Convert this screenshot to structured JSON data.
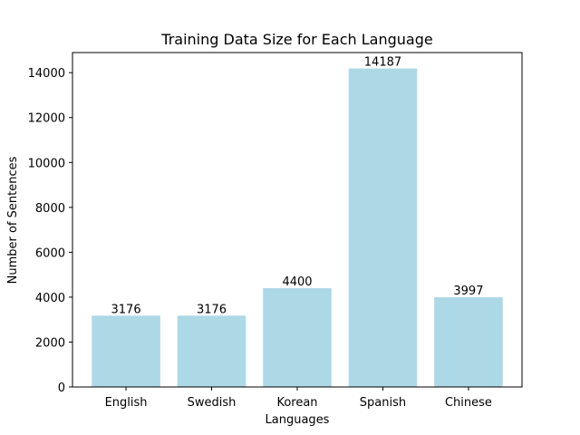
{
  "chart_data": {
    "type": "bar",
    "title": "Training Data Size for Each Language",
    "xlabel": "Languages",
    "ylabel": "Number of Sentences",
    "categories": [
      "English",
      "Swedish",
      "Korean",
      "Spanish",
      "Chinese"
    ],
    "values": [
      3176,
      3176,
      4400,
      14187,
      3997
    ],
    "data_labels": [
      "3176",
      "3176",
      "4400",
      "14187",
      "3997"
    ],
    "ylim": [
      0,
      14896
    ],
    "yticks": [
      0,
      2000,
      4000,
      6000,
      8000,
      10000,
      12000,
      14000
    ],
    "ytick_labels": [
      "0",
      "2000",
      "4000",
      "6000",
      "8000",
      "10000",
      "12000",
      "14000"
    ],
    "bar_color": "#add8e6",
    "grid": false,
    "legend": "none"
  }
}
